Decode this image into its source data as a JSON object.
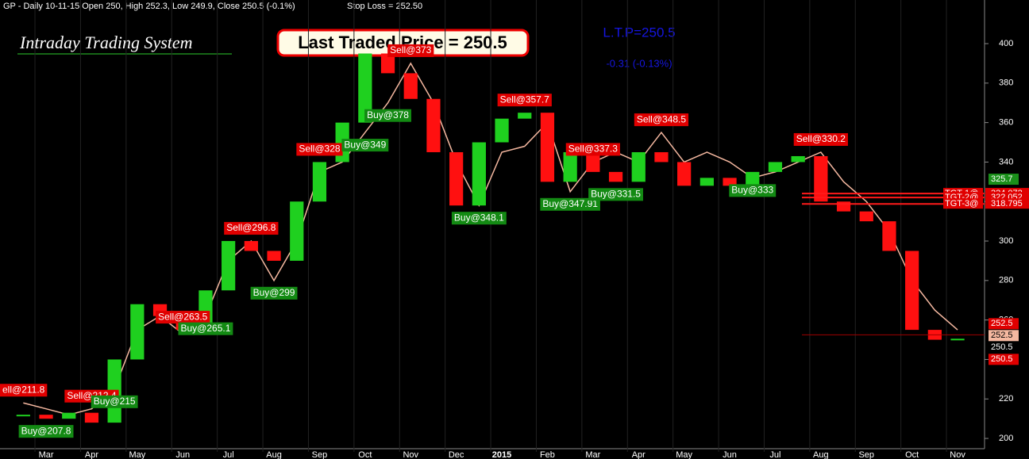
{
  "header": {
    "info": "GP - Daily 10-11-15 Open 250, High 252.3, Low 249.9, Close 250.5 (-0.1%)",
    "stop_loss": "Stop Loss = 252.50"
  },
  "system_name": "Intraday Trading System",
  "last_traded_price": "Last Traded Price = 250.5",
  "ltp": "L.T.P=250.5",
  "change": "-0.31 (-0.13%)",
  "chart_data": {
    "type": "candle-signal",
    "categories": [
      null,
      "Mar",
      null,
      "Apr",
      null,
      "May",
      null,
      "Jun",
      null,
      "Jul",
      null,
      "Aug",
      null,
      "Sep",
      null,
      "Oct",
      null,
      "Nov",
      null,
      "Dec",
      null,
      "2015",
      null,
      "Feb",
      null,
      "Mar",
      null,
      "Apr",
      null,
      "May",
      null,
      "Jun",
      null,
      "Jul",
      null,
      "Aug",
      null,
      "Sep",
      null,
      "Oct",
      null,
      "Nov"
    ],
    "series": [
      {
        "name": "Price",
        "up_color": "#1fd01f",
        "down_color": "#ff1010",
        "values": [
          212,
          210,
          213,
          208,
          240,
          268,
          262,
          255,
          275,
          300,
          295,
          290,
          320,
          340,
          360,
          395,
          385,
          372,
          345,
          318,
          350,
          362,
          365,
          330,
          345,
          335,
          330,
          345,
          340,
          328,
          332,
          328,
          335,
          340,
          343,
          320,
          315,
          310,
          295,
          255,
          250,
          250.5
        ]
      },
      {
        "name": "Stop Line",
        "color": "#f5b8a0",
        "values": [
          218,
          215,
          212,
          215,
          225,
          255,
          262,
          253,
          262,
          290,
          300,
          280,
          300,
          335,
          340,
          355,
          370,
          390,
          370,
          340,
          318,
          345,
          348,
          360,
          325,
          340,
          345,
          340,
          355,
          340,
          345,
          340,
          332,
          335,
          340,
          345,
          330,
          320,
          305,
          280,
          265,
          255
        ]
      }
    ],
    "sell_labels": [
      "ell@211.8",
      null,
      null,
      "Sell@212.4",
      null,
      null,
      null,
      "Sell@263.5",
      null,
      null,
      "Sell@296.8",
      null,
      null,
      "Sell@328",
      null,
      null,
      null,
      "Sell@373",
      null,
      null,
      null,
      null,
      "Sell@357.7",
      null,
      null,
      "Sell@337.3",
      null,
      null,
      "Sell@348.5",
      null,
      null,
      null,
      null,
      null,
      null,
      "Sell@330.2",
      null,
      null,
      null,
      null,
      null,
      null
    ],
    "buy_labels": [
      null,
      "Buy@207.8",
      null,
      null,
      "Buy@215",
      null,
      null,
      null,
      "Buy@265.1",
      null,
      null,
      "Buy@299",
      null,
      null,
      null,
      "Buy@349",
      "Buy@378",
      null,
      null,
      null,
      "Buy@348.1",
      null,
      null,
      null,
      "Buy@347.91",
      null,
      "Buy@331.5",
      null,
      null,
      null,
      null,
      null,
      "Buy@333",
      null,
      null,
      null,
      null,
      null,
      null,
      null,
      null,
      null
    ],
    "targets": [
      {
        "label": "TGT-1@",
        "value": 324.072
      },
      {
        "label": "TGT-2@",
        "value": 322.052
      },
      {
        "label": "TGT-3@",
        "value": 318.795
      }
    ],
    "price_markers": [
      {
        "value": 325.7,
        "color": "#1a8f1a",
        "text_color": "#ffffff"
      },
      {
        "value": 252.5,
        "color": "#e00000",
        "text_color": "#ffffff"
      },
      {
        "value": 252.5,
        "color": "#f5b8a0",
        "text_color": "#000000"
      },
      {
        "value": 250.5,
        "color": "#000000",
        "text_color": "#ffffff"
      },
      {
        "value": 250.5,
        "color": "#e00000",
        "text_color": "#ffffff"
      }
    ],
    "close_line": 252.5,
    "ylim": [
      194.8,
      422.1
    ],
    "yticks": [
      200,
      220,
      240,
      260,
      280,
      300,
      320,
      340,
      360,
      380,
      400
    ]
  }
}
